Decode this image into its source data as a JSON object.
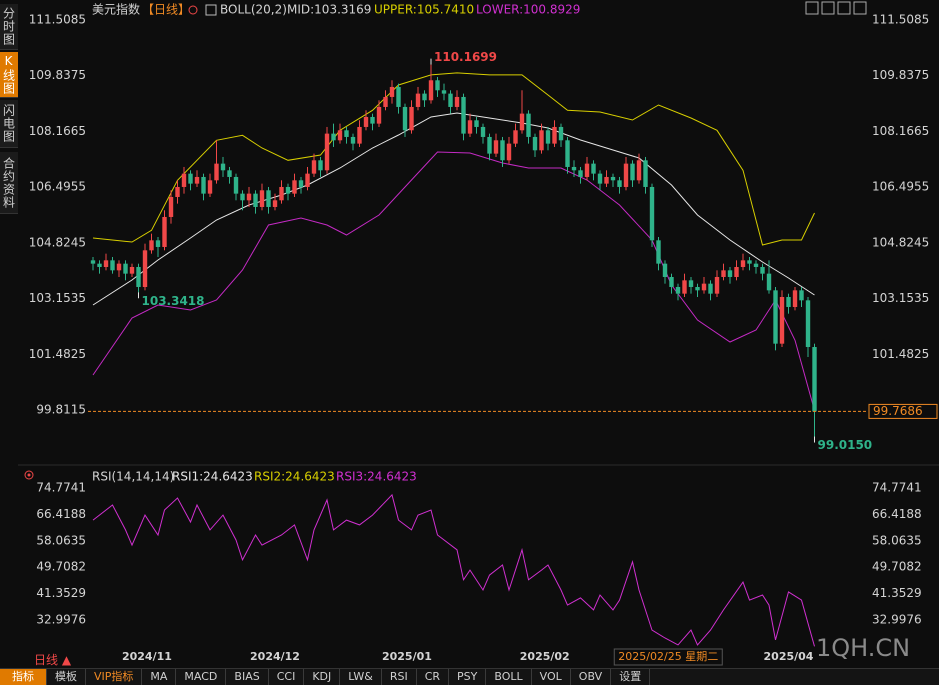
{
  "sidebar": [
    "分时图",
    "K线图",
    "闪电图",
    "合约资料"
  ],
  "header": {
    "symbol": "美元指数",
    "period": "【日线】",
    "indicator": "BOLL(20,2)",
    "mid": "MID:103.3169",
    "upper": "UPPER:105.7410",
    "lower": "LOWER:100.8929"
  },
  "chart_data": [
    {
      "type": "candlestick",
      "up_color": "#f04848",
      "down_color": "#2fb38a",
      "xlim": [
        -0.77,
        119.23
      ],
      "ylim": [
        98.311,
        112.108
      ],
      "yticks": [
        111.5085,
        109.8375,
        108.1665,
        106.4955,
        104.8245,
        103.1535,
        101.4825,
        99.8115
      ],
      "grid": false,
      "xticks": [
        {
          "value": 8.3,
          "label": "2024/11"
        },
        {
          "value": 28,
          "label": "2024/12"
        },
        {
          "value": 48.3,
          "label": "2025/01"
        },
        {
          "value": 69.5,
          "label": "2025/02"
        },
        {
          "value": 107,
          "label": "2025/04"
        }
      ],
      "cursor_label": {
        "value": 88.5,
        "label": "2025/02/25 星期二"
      },
      "current_price": 99.7686,
      "current_color": "#f08a24",
      "candles": [
        [
          104.3,
          104.4,
          104.0,
          104.2
        ],
        [
          104.2,
          104.3,
          103.9,
          104.1
        ],
        [
          104.1,
          104.5,
          104.0,
          104.3
        ],
        [
          104.3,
          104.4,
          103.9,
          104.0
        ],
        [
          104.0,
          104.3,
          103.8,
          104.2
        ],
        [
          104.2,
          104.3,
          103.7,
          103.9
        ],
        [
          103.9,
          104.2,
          103.8,
          104.1
        ],
        [
          104.1,
          104.2,
          103.3418,
          103.5
        ],
        [
          103.5,
          104.8,
          103.4,
          104.6
        ],
        [
          104.6,
          105.1,
          104.5,
          104.9
        ],
        [
          104.9,
          105.0,
          104.4,
          104.7
        ],
        [
          104.7,
          105.8,
          104.6,
          105.6
        ],
        [
          105.6,
          106.4,
          105.4,
          106.2
        ],
        [
          106.2,
          106.7,
          106.0,
          106.5
        ],
        [
          106.5,
          107.1,
          106.3,
          106.9
        ],
        [
          106.9,
          107.0,
          106.4,
          106.6
        ],
        [
          106.6,
          107.0,
          106.5,
          106.8
        ],
        [
          106.8,
          106.9,
          106.1,
          106.3
        ],
        [
          106.3,
          106.9,
          106.2,
          106.7
        ],
        [
          106.7,
          107.9,
          106.6,
          107.2
        ],
        [
          107.2,
          107.4,
          106.8,
          107.0
        ],
        [
          107.0,
          107.1,
          106.6,
          106.8
        ],
        [
          106.8,
          106.9,
          106.1,
          106.3
        ],
        [
          106.3,
          106.4,
          105.8,
          106.1
        ],
        [
          106.1,
          106.5,
          105.9,
          106.3
        ],
        [
          106.3,
          106.4,
          105.7,
          105.9
        ],
        [
          105.9,
          106.6,
          105.8,
          106.4
        ],
        [
          106.4,
          106.5,
          105.7,
          105.9
        ],
        [
          105.9,
          106.3,
          105.8,
          106.1
        ],
        [
          106.1,
          106.7,
          106.0,
          106.5
        ],
        [
          106.5,
          106.6,
          106.1,
          106.3
        ],
        [
          106.3,
          106.9,
          106.2,
          106.7
        ],
        [
          106.7,
          106.8,
          106.3,
          106.5
        ],
        [
          106.5,
          107.1,
          106.4,
          106.9
        ],
        [
          106.9,
          107.5,
          106.8,
          107.3
        ],
        [
          107.3,
          107.4,
          106.8,
          107.0
        ],
        [
          107.0,
          108.3,
          106.9,
          108.1
        ],
        [
          108.1,
          108.4,
          107.7,
          107.9
        ],
        [
          107.9,
          108.4,
          107.8,
          108.2
        ],
        [
          108.2,
          108.3,
          107.8,
          108.0
        ],
        [
          108.0,
          108.1,
          107.6,
          107.8
        ],
        [
          107.8,
          108.5,
          107.7,
          108.3
        ],
        [
          108.3,
          108.8,
          108.2,
          108.6
        ],
        [
          108.6,
          108.7,
          108.2,
          108.4
        ],
        [
          108.4,
          109.1,
          108.3,
          108.9
        ],
        [
          108.9,
          109.4,
          108.8,
          109.2
        ],
        [
          109.2,
          109.7,
          109.0,
          109.5
        ],
        [
          109.5,
          109.6,
          108.7,
          108.9
        ],
        [
          108.9,
          109.0,
          108.0,
          108.2
        ],
        [
          108.2,
          109.1,
          108.1,
          108.9
        ],
        [
          108.9,
          109.5,
          108.8,
          109.3
        ],
        [
          109.3,
          109.4,
          108.9,
          109.1
        ],
        [
          109.1,
          110.1699,
          109.0,
          109.7
        ],
        [
          109.7,
          109.8,
          109.2,
          109.4
        ],
        [
          109.4,
          109.6,
          109.1,
          109.3
        ],
        [
          109.3,
          109.4,
          108.7,
          108.9
        ],
        [
          108.9,
          109.4,
          108.8,
          109.2
        ],
        [
          109.2,
          109.3,
          107.9,
          108.1
        ],
        [
          108.1,
          108.7,
          108.0,
          108.5
        ],
        [
          108.5,
          108.6,
          108.1,
          108.3
        ],
        [
          108.3,
          108.4,
          107.8,
          108.0
        ],
        [
          108.0,
          108.1,
          107.3,
          107.5
        ],
        [
          107.5,
          108.1,
          107.4,
          107.9
        ],
        [
          107.9,
          108.0,
          107.1,
          107.3
        ],
        [
          107.3,
          108.0,
          107.2,
          107.8
        ],
        [
          107.8,
          108.4,
          107.7,
          108.2
        ],
        [
          108.2,
          109.4,
          108.1,
          108.7
        ],
        [
          108.7,
          108.8,
          107.8,
          108.0
        ],
        [
          108.0,
          108.1,
          107.4,
          107.6
        ],
        [
          107.6,
          108.4,
          107.5,
          108.2
        ],
        [
          108.2,
          108.3,
          107.6,
          107.8
        ],
        [
          107.8,
          108.5,
          107.7,
          108.3
        ],
        [
          108.3,
          108.4,
          107.7,
          107.9
        ],
        [
          107.9,
          108.0,
          106.9,
          107.1
        ],
        [
          107.1,
          107.3,
          106.8,
          107.0
        ],
        [
          107.0,
          107.1,
          106.6,
          106.8
        ],
        [
          106.8,
          107.4,
          106.7,
          107.2
        ],
        [
          107.2,
          107.3,
          106.7,
          106.9
        ],
        [
          106.9,
          107.0,
          106.4,
          106.6
        ],
        [
          106.6,
          107.0,
          106.5,
          106.8
        ],
        [
          106.8,
          106.9,
          106.5,
          106.7
        ],
        [
          106.7,
          106.8,
          106.3,
          106.5
        ],
        [
          106.5,
          107.4,
          106.4,
          107.2
        ],
        [
          107.2,
          107.3,
          106.5,
          106.7
        ],
        [
          106.7,
          107.5,
          106.6,
          107.3
        ],
        [
          107.3,
          107.4,
          106.3,
          106.5
        ],
        [
          106.5,
          106.6,
          104.7,
          104.9
        ],
        [
          104.9,
          105.0,
          104.0,
          104.2
        ],
        [
          104.2,
          104.3,
          103.6,
          103.8
        ],
        [
          103.8,
          103.9,
          103.3,
          103.5
        ],
        [
          103.5,
          103.6,
          103.1,
          103.3
        ],
        [
          103.3,
          103.9,
          103.2,
          103.7
        ],
        [
          103.7,
          103.8,
          103.3,
          103.5
        ],
        [
          103.5,
          103.6,
          103.2,
          103.4
        ],
        [
          103.4,
          103.8,
          103.3,
          103.6
        ],
        [
          103.6,
          103.7,
          103.1,
          103.3
        ],
        [
          103.3,
          104.0,
          103.2,
          103.8
        ],
        [
          103.8,
          104.2,
          103.7,
          104.0
        ],
        [
          104.0,
          104.1,
          103.6,
          103.8
        ],
        [
          103.8,
          104.3,
          103.7,
          104.1
        ],
        [
          104.1,
          104.5,
          104.0,
          104.3
        ],
        [
          104.3,
          104.4,
          104.0,
          104.2
        ],
        [
          104.2,
          104.3,
          103.9,
          104.1
        ],
        [
          104.1,
          104.2,
          103.7,
          103.9
        ],
        [
          103.9,
          104.3,
          103.3,
          103.4
        ],
        [
          103.4,
          103.5,
          101.6,
          101.8
        ],
        [
          101.8,
          103.4,
          101.7,
          103.2
        ],
        [
          103.2,
          103.3,
          102.7,
          102.9
        ],
        [
          102.9,
          103.5,
          102.8,
          103.4
        ],
        [
          103.4,
          103.5,
          102.9,
          103.1
        ],
        [
          103.1,
          103.2,
          101.4,
          101.7
        ],
        [
          101.7,
          101.8,
          99.015,
          99.7686
        ]
      ],
      "bands": [
        {
          "color": "#d8cf00",
          "x": [
            0,
            6,
            9,
            13,
            19,
            23,
            26,
            30,
            35,
            38,
            43,
            47,
            52,
            56,
            61,
            66,
            70,
            73,
            78,
            83,
            87,
            92,
            96,
            100,
            103,
            106,
            109,
            111
          ],
          "values": [
            104.97,
            104.85,
            105.2,
            106.7,
            107.9,
            108.05,
            107.67,
            107.3,
            107.46,
            108.2,
            108.8,
            109.56,
            109.86,
            109.92,
            109.86,
            109.86,
            109.26,
            108.8,
            108.75,
            108.51,
            108.96,
            108.57,
            108.2,
            107.0,
            104.76,
            104.91,
            104.91,
            105.72
          ]
        },
        {
          "color": "#e6e6e6",
          "x": [
            0,
            6,
            10,
            15,
            19,
            24,
            29,
            33,
            38,
            43,
            47,
            52,
            56,
            61,
            66,
            70,
            75,
            80,
            84,
            89,
            93,
            98,
            103,
            107,
            111
          ],
          "values": [
            102.96,
            103.71,
            104.31,
            104.97,
            105.51,
            105.96,
            106.26,
            106.56,
            107.07,
            107.67,
            108.06,
            108.6,
            108.72,
            108.57,
            108.42,
            108.27,
            107.91,
            107.61,
            107.37,
            106.56,
            105.66,
            104.91,
            104.25,
            103.77,
            103.26
          ]
        },
        {
          "color": "#c42ac4",
          "x": [
            0,
            6,
            10,
            15,
            19,
            23,
            27,
            32,
            36,
            39,
            44,
            49,
            53,
            58,
            63,
            67,
            72,
            76,
            81,
            86,
            89,
            93,
            98,
            102,
            105,
            108,
            111
          ],
          "values": [
            100.86,
            102.57,
            102.96,
            102.81,
            103.11,
            104.01,
            105.36,
            105.57,
            105.36,
            105.06,
            105.66,
            106.71,
            107.55,
            107.52,
            107.22,
            107.07,
            107.07,
            106.71,
            105.96,
            104.91,
            103.56,
            102.51,
            101.85,
            102.21,
            103.11,
            101.9,
            99.8
          ]
        }
      ],
      "annotations": [
        {
          "candle": 52,
          "value": 110.1699,
          "color": "#f04848"
        },
        {
          "candle": 7,
          "value": 103.3418,
          "color": "#2fb38a"
        },
        {
          "candle": 111,
          "value": 99.015,
          "label": "99.0150",
          "color": "#2fb38a"
        }
      ]
    },
    {
      "type": "line",
      "title": "RSI(14,14,14)",
      "legend": [
        {
          "text": "RSI1:24.6423",
          "color": "#e6e6e6"
        },
        {
          "text": "RSI2:24.6423",
          "color": "#d8cf00"
        },
        {
          "text": "RSI3:24.6423",
          "color": "#d030d0"
        }
      ],
      "xlim": [
        -0.77,
        119.23
      ],
      "ylim": [
        22.86,
        77.94
      ],
      "yticks": [
        74.7741,
        66.4188,
        58.0635,
        49.7082,
        41.3529,
        32.9976
      ],
      "series": [
        {
          "color": "#d030d0",
          "x": [
            0,
            3,
            5,
            6,
            8,
            10,
            11,
            13,
            15,
            16,
            18,
            20,
            22,
            23,
            25,
            26,
            29,
            31,
            33,
            34,
            36,
            37,
            39,
            41,
            43,
            46,
            47,
            49,
            50,
            52,
            53,
            56,
            57,
            58,
            60,
            61,
            63,
            64,
            66,
            67,
            69,
            70,
            72,
            73,
            75,
            77,
            78,
            80,
            81,
            83,
            84,
            86,
            88,
            90,
            92,
            93,
            95,
            97,
            100,
            101,
            103,
            104,
            105,
            107,
            109,
            111
          ],
          "values": [
            64.6,
            69.4,
            61.5,
            56.7,
            66.2,
            59.9,
            67.8,
            71.6,
            64.0,
            69.4,
            61.5,
            66.2,
            58.3,
            52.0,
            59.9,
            56.7,
            59.9,
            63.1,
            52.0,
            61.5,
            71.0,
            61.5,
            64.6,
            63.1,
            66.2,
            72.6,
            64.6,
            61.5,
            66.2,
            67.8,
            59.9,
            55.2,
            45.7,
            48.8,
            42.5,
            47.2,
            50.4,
            42.5,
            55.2,
            45.7,
            48.8,
            50.4,
            42.5,
            37.7,
            40.0,
            36.2,
            40.9,
            36.2,
            39.3,
            51.4,
            42.5,
            29.8,
            27.3,
            25.1,
            29.8,
            25.1,
            29.8,
            36.2,
            45.0,
            39.3,
            40.9,
            37.7,
            26.7,
            41.9,
            39.3,
            24.6423
          ]
        }
      ]
    }
  ],
  "footer": {
    "period": "日线",
    "tabs": [
      "指标",
      "模板",
      "VIP指标",
      "MA",
      "MACD",
      "BIAS",
      "CCI",
      "KDJ",
      "LW&",
      "RSI",
      "CR",
      "PSY",
      "BOLL",
      "VOL",
      "OBV",
      "设置"
    ]
  },
  "watermark": "1QH.CN"
}
